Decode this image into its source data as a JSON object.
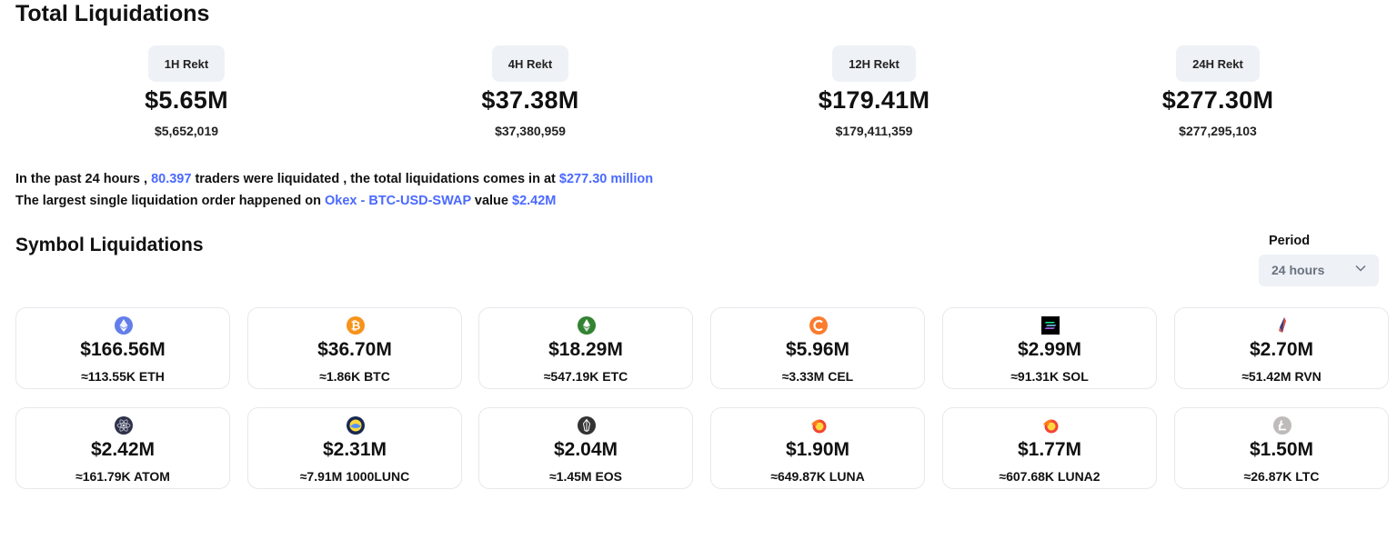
{
  "header": {
    "title": "Total Liquidations"
  },
  "rekt": [
    {
      "label": "1H Rekt",
      "value": "$5.65M",
      "exact": "$5,652,019"
    },
    {
      "label": "4H Rekt",
      "value": "$37.38M",
      "exact": "$37,380,959"
    },
    {
      "label": "12H Rekt",
      "value": "$179.41M",
      "exact": "$179,411,359"
    },
    {
      "label": "24H Rekt",
      "value": "$277.30M",
      "exact": "$277,295,103"
    }
  ],
  "summary": {
    "line1_a": "In the past 24 hours ,",
    "traders": "80.397",
    "line1_b": "traders were liquidated , the total liquidations comes in at",
    "total": "$277.30 million",
    "line2_a": "The largest single liquidation order happened on",
    "exchange": "Okex - BTC-USD-SWAP",
    "line2_b": "value",
    "largest": "$2.42M"
  },
  "symbols": {
    "title": "Symbol Liquidations",
    "period_label": "Period",
    "period_value": "24 hours",
    "cards": [
      {
        "icon": "eth-icon",
        "color": "#627eea",
        "amount": "$166.56M",
        "approx": "≈113.55K ETH"
      },
      {
        "icon": "btc-icon",
        "color": "#f7931a",
        "amount": "$36.70M",
        "approx": "≈1.86K BTC"
      },
      {
        "icon": "etc-icon",
        "color": "#328332",
        "amount": "$18.29M",
        "approx": "≈547.19K ETC"
      },
      {
        "icon": "cel-icon",
        "color": "#fb7c2e",
        "amount": "$5.96M",
        "approx": "≈3.33M CEL"
      },
      {
        "icon": "sol-icon",
        "color": "#000000",
        "amount": "$2.99M",
        "approx": "≈91.31K SOL"
      },
      {
        "icon": "rvn-icon",
        "color": "#384182",
        "amount": "$2.70M",
        "approx": "≈51.42M RVN"
      },
      {
        "icon": "atom-icon",
        "color": "#2e3148",
        "amount": "$2.42M",
        "approx": "≈161.79K ATOM"
      },
      {
        "icon": "lunc-icon",
        "color": "#172852",
        "amount": "$2.31M",
        "approx": "≈7.91M 1000LUNC"
      },
      {
        "icon": "eos-icon",
        "color": "#333333",
        "amount": "$2.04M",
        "approx": "≈1.45M EOS"
      },
      {
        "icon": "luna-icon",
        "color": "#f44336",
        "amount": "$1.90M",
        "approx": "≈649.87K LUNA"
      },
      {
        "icon": "luna2-icon",
        "color": "#f44336",
        "amount": "$1.77M",
        "approx": "≈607.68K LUNA2"
      },
      {
        "icon": "ltc-icon",
        "color": "#bfbbbb",
        "amount": "$1.50M",
        "approx": "≈26.87K LTC"
      }
    ]
  }
}
